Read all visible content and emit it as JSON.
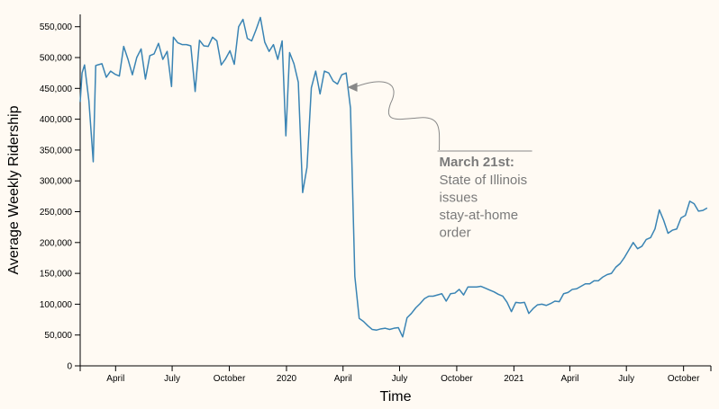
{
  "chart_data": {
    "type": "line",
    "title": "",
    "xlabel": "Time",
    "ylabel": "Average Weekly Ridership",
    "ylim": [
      0,
      570000
    ],
    "y_ticks": [
      0,
      50000,
      100000,
      150000,
      200000,
      250000,
      300000,
      350000,
      400000,
      450000,
      500000,
      550000
    ],
    "y_tick_labels": [
      "0",
      "50,000",
      "100,000",
      "150,000",
      "200,000",
      "250,000",
      "300,000",
      "350,000",
      "400,000",
      "450,000",
      "500,000",
      "550,000"
    ],
    "x_range": [
      "2019-02-03",
      "2021-11-14"
    ],
    "x_ticks": [
      "2019-04-01",
      "2019-07-01",
      "2019-10-01",
      "2020-01-01",
      "2020-04-01",
      "2020-07-01",
      "2020-10-01",
      "2021-01-01",
      "2021-04-01",
      "2021-07-01",
      "2021-10-01"
    ],
    "x_tick_labels": [
      "April",
      "July",
      "October",
      "2020",
      "April",
      "July",
      "October",
      "2021",
      "April",
      "July",
      "October"
    ],
    "grid": false,
    "line_color": "#3a84b4",
    "series": [
      {
        "name": "",
        "points": [
          [
            "2019-02-03",
            428000
          ],
          [
            "2019-02-06",
            475000
          ],
          [
            "2019-02-10",
            488000
          ],
          [
            "2019-02-17",
            430000
          ],
          [
            "2019-02-24",
            331000
          ],
          [
            "2019-02-28",
            487000
          ],
          [
            "2019-03-03",
            488000
          ],
          [
            "2019-03-10",
            490000
          ],
          [
            "2019-03-17",
            468000
          ],
          [
            "2019-03-24",
            478000
          ],
          [
            "2019-03-31",
            473000
          ],
          [
            "2019-04-07",
            470000
          ],
          [
            "2019-04-14",
            518000
          ],
          [
            "2019-04-21",
            497000
          ],
          [
            "2019-04-28",
            472000
          ],
          [
            "2019-05-05",
            500000
          ],
          [
            "2019-05-12",
            514000
          ],
          [
            "2019-05-19",
            465000
          ],
          [
            "2019-05-26",
            503000
          ],
          [
            "2019-06-02",
            506000
          ],
          [
            "2019-06-09",
            523000
          ],
          [
            "2019-06-16",
            497000
          ],
          [
            "2019-06-23",
            510000
          ],
          [
            "2019-06-30",
            453000
          ],
          [
            "2019-07-03",
            533000
          ],
          [
            "2019-07-10",
            524000
          ],
          [
            "2019-07-17",
            521000
          ],
          [
            "2019-07-24",
            521000
          ],
          [
            "2019-07-31",
            519000
          ],
          [
            "2019-08-07",
            445000
          ],
          [
            "2019-08-14",
            528000
          ],
          [
            "2019-08-21",
            519000
          ],
          [
            "2019-08-28",
            518000
          ],
          [
            "2019-09-04",
            533000
          ],
          [
            "2019-09-11",
            527000
          ],
          [
            "2019-09-18",
            488000
          ],
          [
            "2019-09-25",
            498000
          ],
          [
            "2019-10-02",
            511000
          ],
          [
            "2019-10-09",
            489000
          ],
          [
            "2019-10-16",
            550000
          ],
          [
            "2019-10-23",
            562000
          ],
          [
            "2019-10-30",
            531000
          ],
          [
            "2019-11-06",
            527000
          ],
          [
            "2019-11-13",
            545000
          ],
          [
            "2019-11-20",
            565000
          ],
          [
            "2019-11-27",
            525000
          ],
          [
            "2019-12-04",
            510000
          ],
          [
            "2019-12-11",
            521000
          ],
          [
            "2019-12-18",
            497000
          ],
          [
            "2019-12-25",
            527000
          ],
          [
            "2019-12-31",
            373000
          ],
          [
            "2020-01-06",
            508000
          ],
          [
            "2020-01-13",
            490000
          ],
          [
            "2020-01-20",
            460000
          ],
          [
            "2020-01-27",
            281000
          ],
          [
            "2020-02-03",
            322000
          ],
          [
            "2020-02-10",
            451000
          ],
          [
            "2020-02-17",
            478000
          ],
          [
            "2020-02-24",
            441000
          ],
          [
            "2020-03-02",
            478000
          ],
          [
            "2020-03-09",
            475000
          ],
          [
            "2020-03-16",
            462000
          ],
          [
            "2020-03-23",
            457000
          ],
          [
            "2020-03-30",
            472000
          ],
          [
            "2020-04-06",
            475000
          ],
          [
            "2020-04-13",
            418000
          ],
          [
            "2020-04-20",
            145000
          ],
          [
            "2020-04-27",
            77000
          ],
          [
            "2020-05-04",
            72000
          ],
          [
            "2020-05-11",
            65000
          ],
          [
            "2020-05-18",
            59000
          ],
          [
            "2020-05-25",
            58000
          ],
          [
            "2020-06-01",
            60000
          ],
          [
            "2020-06-08",
            61000
          ],
          [
            "2020-06-15",
            59000
          ],
          [
            "2020-06-22",
            61000
          ],
          [
            "2020-06-29",
            62000
          ],
          [
            "2020-07-06",
            47000
          ],
          [
            "2020-07-13",
            78000
          ],
          [
            "2020-07-20",
            85000
          ],
          [
            "2020-07-27",
            94000
          ],
          [
            "2020-08-03",
            101000
          ],
          [
            "2020-08-10",
            109000
          ],
          [
            "2020-08-17",
            113000
          ],
          [
            "2020-08-24",
            113000
          ],
          [
            "2020-08-31",
            115000
          ],
          [
            "2020-09-07",
            117000
          ],
          [
            "2020-09-14",
            105000
          ],
          [
            "2020-09-21",
            117000
          ],
          [
            "2020-09-28",
            118000
          ],
          [
            "2020-10-05",
            124000
          ],
          [
            "2020-10-12",
            115000
          ],
          [
            "2020-10-19",
            128000
          ],
          [
            "2020-10-26",
            128000
          ],
          [
            "2020-11-02",
            128000
          ],
          [
            "2020-11-09",
            129000
          ],
          [
            "2020-11-16",
            126000
          ],
          [
            "2020-11-23",
            123000
          ],
          [
            "2020-11-30",
            120000
          ],
          [
            "2020-12-07",
            116000
          ],
          [
            "2020-12-14",
            113000
          ],
          [
            "2020-12-21",
            103000
          ],
          [
            "2020-12-28",
            88000
          ],
          [
            "2021-01-04",
            103000
          ],
          [
            "2021-01-11",
            102000
          ],
          [
            "2021-01-18",
            103000
          ],
          [
            "2021-01-25",
            85000
          ],
          [
            "2021-02-01",
            93000
          ],
          [
            "2021-02-08",
            99000
          ],
          [
            "2021-02-15",
            100000
          ],
          [
            "2021-02-22",
            98000
          ],
          [
            "2021-03-01",
            101000
          ],
          [
            "2021-03-08",
            105000
          ],
          [
            "2021-03-15",
            104000
          ],
          [
            "2021-03-22",
            117000
          ],
          [
            "2021-03-29",
            119000
          ],
          [
            "2021-04-05",
            124000
          ],
          [
            "2021-04-12",
            125000
          ],
          [
            "2021-04-19",
            129000
          ],
          [
            "2021-04-26",
            133000
          ],
          [
            "2021-05-03",
            133000
          ],
          [
            "2021-05-10",
            138000
          ],
          [
            "2021-05-17",
            138000
          ],
          [
            "2021-05-24",
            144000
          ],
          [
            "2021-05-31",
            148000
          ],
          [
            "2021-06-07",
            150000
          ],
          [
            "2021-06-14",
            160000
          ],
          [
            "2021-06-21",
            166000
          ],
          [
            "2021-06-28",
            176000
          ],
          [
            "2021-07-05",
            188000
          ],
          [
            "2021-07-12",
            200000
          ],
          [
            "2021-07-19",
            190000
          ],
          [
            "2021-07-26",
            194000
          ],
          [
            "2021-08-02",
            205000
          ],
          [
            "2021-08-09",
            208000
          ],
          [
            "2021-08-16",
            222000
          ],
          [
            "2021-08-23",
            253000
          ],
          [
            "2021-08-30",
            236000
          ],
          [
            "2021-09-06",
            215000
          ],
          [
            "2021-09-13",
            220000
          ],
          [
            "2021-09-20",
            222000
          ],
          [
            "2021-09-27",
            240000
          ],
          [
            "2021-10-04",
            244000
          ],
          [
            "2021-10-11",
            267000
          ],
          [
            "2021-10-18",
            263000
          ],
          [
            "2021-10-25",
            251000
          ],
          [
            "2021-11-01",
            252000
          ],
          [
            "2021-11-08",
            256000
          ]
        ]
      }
    ],
    "annotation": {
      "heading": "March 21st:",
      "lines": [
        "State of Illinois",
        "issues",
        "stay-at-home",
        "order"
      ],
      "target": [
        "2020-04-08",
        452000
      ],
      "color": "#888888"
    }
  }
}
